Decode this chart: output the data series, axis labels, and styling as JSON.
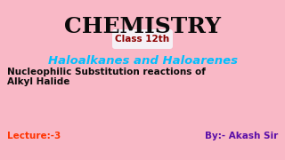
{
  "bg_color": "#f9b8c6",
  "title": "CHEMISTRY",
  "title_color": "#0a0a0a",
  "title_fontsize": 18,
  "badge_text": "Class 12th",
  "badge_text_color": "#8b0000",
  "badge_bg_color": "#f5f0f5",
  "badge_fontsize": 7.5,
  "subtitle": "Haloalkanes and Haloarenes",
  "subtitle_color": "#00bfff",
  "subtitle_fontsize": 9.5,
  "line1": "Nucleophilic Substitution reactions of",
  "line2": "Alkyl Halide",
  "body_color": "#0a0a0a",
  "body_fontsize": 7.5,
  "lecture_text": "Lecture:-3",
  "lecture_color": "#ff3300",
  "lecture_fontsize": 7.5,
  "by_text": "By:- Akash Sir",
  "by_color": "#5b0fa8",
  "by_fontsize": 7.5
}
